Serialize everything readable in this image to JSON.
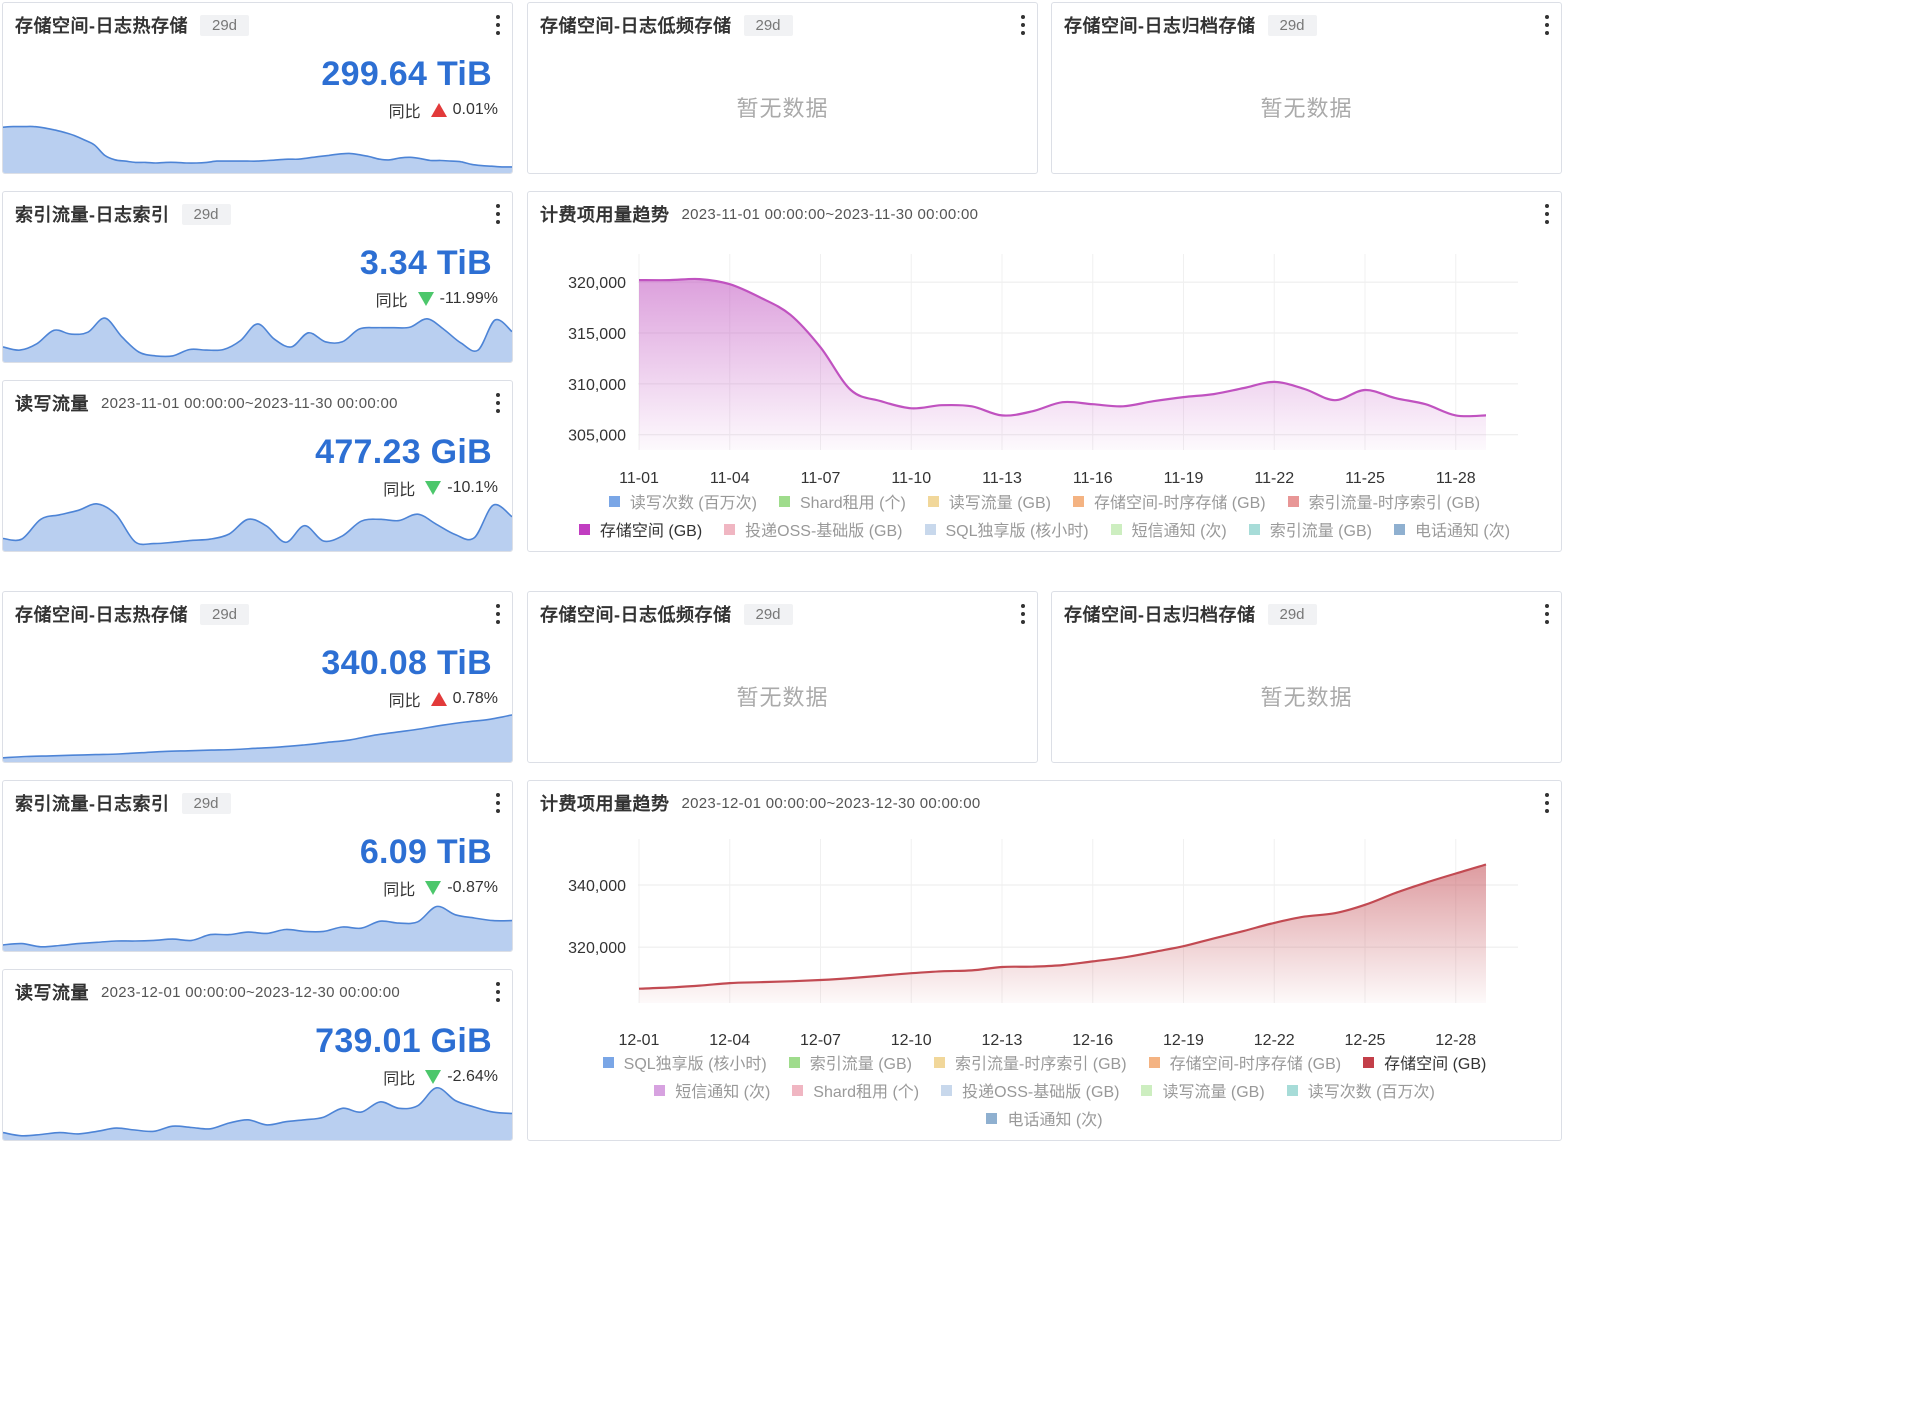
{
  "section1": {
    "hot": {
      "title": "存储空间-日志热存储",
      "badge": "29d",
      "value": "299.64 TiB",
      "compare_label": "同比",
      "change": "0.01%",
      "direction": "up",
      "spark": [
        0.7,
        0.71,
        0.71,
        0.71,
        0.69,
        0.66,
        0.62,
        0.57,
        0.5,
        0.42,
        0.26,
        0.19,
        0.17,
        0.15,
        0.15,
        0.14,
        0.15,
        0.15,
        0.14,
        0.14,
        0.15,
        0.17,
        0.17,
        0.17,
        0.17,
        0.17,
        0.18,
        0.19,
        0.2,
        0.2,
        0.22,
        0.24,
        0.26,
        0.28,
        0.29,
        0.27,
        0.24,
        0.2,
        0.19,
        0.22,
        0.23,
        0.21,
        0.18,
        0.18,
        0.17,
        0.16,
        0.12,
        0.1,
        0.09,
        0.08,
        0.08
      ]
    },
    "lowfreq": {
      "title": "存储空间-日志低频存储",
      "badge": "29d",
      "empty": "暂无数据"
    },
    "archive": {
      "title": "存储空间-日志归档存储",
      "badge": "29d",
      "empty": "暂无数据"
    },
    "index": {
      "title": "索引流量-日志索引",
      "badge": "29d",
      "value": "3.34 TiB",
      "compare_label": "同比",
      "change": "-11.99%",
      "direction": "down",
      "spark": [
        0.22,
        0.17,
        0.27,
        0.48,
        0.42,
        0.45,
        0.67,
        0.38,
        0.14,
        0.08,
        0.08,
        0.18,
        0.17,
        0.18,
        0.32,
        0.58,
        0.34,
        0.22,
        0.44,
        0.3,
        0.3,
        0.5,
        0.52,
        0.52,
        0.53,
        0.66,
        0.49,
        0.28,
        0.17,
        0.64,
        0.46
      ]
    },
    "rw": {
      "title": "读写流量",
      "range": "2023-11-01 00:00:00~2023-11-30 00:00:00",
      "value": "477.23 GiB",
      "compare_label": "同比",
      "change": "-10.1%",
      "direction": "down",
      "spark": [
        0.18,
        0.17,
        0.48,
        0.55,
        0.62,
        0.72,
        0.55,
        0.13,
        0.1,
        0.12,
        0.15,
        0.17,
        0.25,
        0.48,
        0.37,
        0.12,
        0.38,
        0.14,
        0.22,
        0.45,
        0.48,
        0.46,
        0.56,
        0.4,
        0.24,
        0.19,
        0.7,
        0.52
      ]
    },
    "trend": {
      "title": "计费项用量趋势",
      "range": "2023-11-01 00:00:00~2023-11-30 00:00:00"
    }
  },
  "section2": {
    "hot": {
      "title": "存储空间-日志热存储",
      "badge": "29d",
      "value": "340.08 TiB",
      "compare_label": "同比",
      "change": "0.78%",
      "direction": "up",
      "spark": [
        0.05,
        0.07,
        0.08,
        0.09,
        0.1,
        0.11,
        0.13,
        0.15,
        0.16,
        0.17,
        0.18,
        0.2,
        0.22,
        0.25,
        0.29,
        0.33,
        0.4,
        0.45,
        0.5,
        0.56,
        0.61,
        0.65,
        0.72
      ]
    },
    "lowfreq": {
      "title": "存储空间-日志低频存储",
      "badge": "29d",
      "empty": "暂无数据"
    },
    "archive": {
      "title": "存储空间-日志归档存储",
      "badge": "29d",
      "empty": "暂无数据"
    },
    "index": {
      "title": "索引流量-日志索引",
      "badge": "29d",
      "value": "6.09 TiB",
      "compare_label": "同比",
      "change": "-0.87%",
      "direction": "down",
      "spark": [
        0.08,
        0.1,
        0.05,
        0.07,
        0.1,
        0.12,
        0.14,
        0.14,
        0.15,
        0.17,
        0.15,
        0.24,
        0.24,
        0.28,
        0.26,
        0.32,
        0.29,
        0.29,
        0.36,
        0.34,
        0.45,
        0.42,
        0.44,
        0.68,
        0.55,
        0.5,
        0.46,
        0.46
      ]
    },
    "rw": {
      "title": "读写流量",
      "range": "2023-12-01 00:00:00~2023-12-30 00:00:00",
      "value": "739.01 GiB",
      "compare_label": "同比",
      "change": "-2.64%",
      "direction": "down",
      "spark": [
        0.1,
        0.05,
        0.07,
        0.1,
        0.08,
        0.12,
        0.17,
        0.14,
        0.12,
        0.2,
        0.18,
        0.16,
        0.25,
        0.3,
        0.22,
        0.27,
        0.3,
        0.34,
        0.48,
        0.42,
        0.58,
        0.48,
        0.52,
        0.8,
        0.6,
        0.5,
        0.42,
        0.4
      ]
    },
    "trend": {
      "title": "计费项用量趋势",
      "range": "2023-12-01 00:00:00~2023-12-30 00:00:00"
    }
  },
  "chart_data": [
    {
      "type": "area",
      "title": "计费项用量趋势",
      "subtitle": "2023-11-01 00:00:00~2023-11-30 00:00:00",
      "categories": [
        "11-01",
        "11-02",
        "11-03",
        "11-04",
        "11-05",
        "11-06",
        "11-07",
        "11-08",
        "11-09",
        "11-10",
        "11-11",
        "11-12",
        "11-13",
        "11-14",
        "11-15",
        "11-16",
        "11-17",
        "11-18",
        "11-19",
        "11-20",
        "11-21",
        "11-22",
        "11-23",
        "11-24",
        "11-25",
        "11-26",
        "11-27",
        "11-28",
        "11-29"
      ],
      "x_tick_labels": [
        "11-01",
        "11-04",
        "11-07",
        "11-10",
        "11-13",
        "11-16",
        "11-19",
        "11-22",
        "11-25",
        "11-28"
      ],
      "ylim": [
        303500,
        321000
      ],
      "yticks": [
        305000,
        310000,
        315000,
        320000
      ],
      "y_tick_labels": [
        "305,000",
        "310,000",
        "315,000",
        "320,000"
      ],
      "grid": true,
      "color": "#c052c0",
      "series": [
        {
          "name": "存储空间 (GB)",
          "values": [
            320200,
            320200,
            320300,
            319800,
            318500,
            316800,
            313600,
            309400,
            308300,
            307600,
            307900,
            307800,
            306900,
            307300,
            308200,
            308000,
            307800,
            308300,
            308700,
            309000,
            309600,
            310200,
            309500,
            308400,
            309400,
            308600,
            308000,
            306900,
            306900
          ]
        }
      ],
      "legend": [
        {
          "label": "读写次数 (百万次)",
          "color": "#7aa6e6",
          "active": false
        },
        {
          "label": "Shard租用 (个)",
          "color": "#9fdc8c",
          "active": false
        },
        {
          "label": "读写流量 (GB)",
          "color": "#f1d79a",
          "active": false
        },
        {
          "label": "存储空间-时序存储 (GB)",
          "color": "#f4b382",
          "active": false
        },
        {
          "label": "索引流量-时序索引 (GB)",
          "color": "#e89696",
          "active": false
        },
        {
          "label": "存储空间 (GB)",
          "color": "#c13dc1",
          "active": true
        },
        {
          "label": "投递OSS-基础版 (GB)",
          "color": "#f0b6c2",
          "active": false
        },
        {
          "label": "SQL独享版 (核小时)",
          "color": "#c8d8ec",
          "active": false
        },
        {
          "label": "短信通知 (次)",
          "color": "#cdeec0",
          "active": false
        },
        {
          "label": "索引流量 (GB)",
          "color": "#a7dcd8",
          "active": false
        },
        {
          "label": "电话通知 (次)",
          "color": "#8fb0d0",
          "active": false
        }
      ],
      "legend_rows": [
        5,
        6
      ]
    },
    {
      "type": "area",
      "title": "计费项用量趋势",
      "subtitle": "2023-12-01 00:00:00~2023-12-30 00:00:00",
      "categories": [
        "12-01",
        "12-02",
        "12-03",
        "12-04",
        "12-05",
        "12-06",
        "12-07",
        "12-08",
        "12-09",
        "12-10",
        "12-11",
        "12-12",
        "12-13",
        "12-14",
        "12-15",
        "12-16",
        "12-17",
        "12-18",
        "12-19",
        "12-20",
        "12-21",
        "12-22",
        "12-23",
        "12-24",
        "12-25",
        "12-26",
        "12-27",
        "12-28",
        "12-29"
      ],
      "x_tick_labels": [
        "12-01",
        "12-04",
        "12-07",
        "12-10",
        "12-13",
        "12-16",
        "12-19",
        "12-22",
        "12-25",
        "12-28"
      ],
      "ylim": [
        302000,
        349000
      ],
      "yticks": [
        320000,
        340000
      ],
      "y_tick_labels": [
        "320,000",
        "340,000"
      ],
      "grid": true,
      "color": "#c24a52",
      "series": [
        {
          "name": "存储空间 (GB)",
          "values": [
            306600,
            307000,
            307600,
            308400,
            308700,
            309000,
            309400,
            310000,
            310800,
            311600,
            312200,
            312500,
            313600,
            313700,
            314200,
            315400,
            316600,
            318400,
            320300,
            322800,
            325200,
            327800,
            329800,
            330900,
            333600,
            337400,
            340700,
            343700,
            346600
          ]
        }
      ],
      "legend": [
        {
          "label": "SQL独享版 (核小时)",
          "color": "#7aa6e6",
          "active": false
        },
        {
          "label": "索引流量 (GB)",
          "color": "#9fdc8c",
          "active": false
        },
        {
          "label": "索引流量-时序索引 (GB)",
          "color": "#f1d79a",
          "active": false
        },
        {
          "label": "存储空间-时序存储 (GB)",
          "color": "#f4b382",
          "active": false
        },
        {
          "label": "存储空间 (GB)",
          "color": "#c33f49",
          "active": true
        },
        {
          "label": "短信通知 (次)",
          "color": "#d7a2e0",
          "active": false
        },
        {
          "label": "Shard租用 (个)",
          "color": "#f0b6c2",
          "active": false
        },
        {
          "label": "投递OSS-基础版 (GB)",
          "color": "#c8d8ec",
          "active": false
        },
        {
          "label": "读写流量 (GB)",
          "color": "#cdeec0",
          "active": false
        },
        {
          "label": "读写次数 (百万次)",
          "color": "#a7dcd8",
          "active": false
        },
        {
          "label": "电话通知 (次)",
          "color": "#8fb0d0",
          "active": false
        }
      ],
      "legend_rows": [
        5,
        5,
        1
      ]
    }
  ]
}
